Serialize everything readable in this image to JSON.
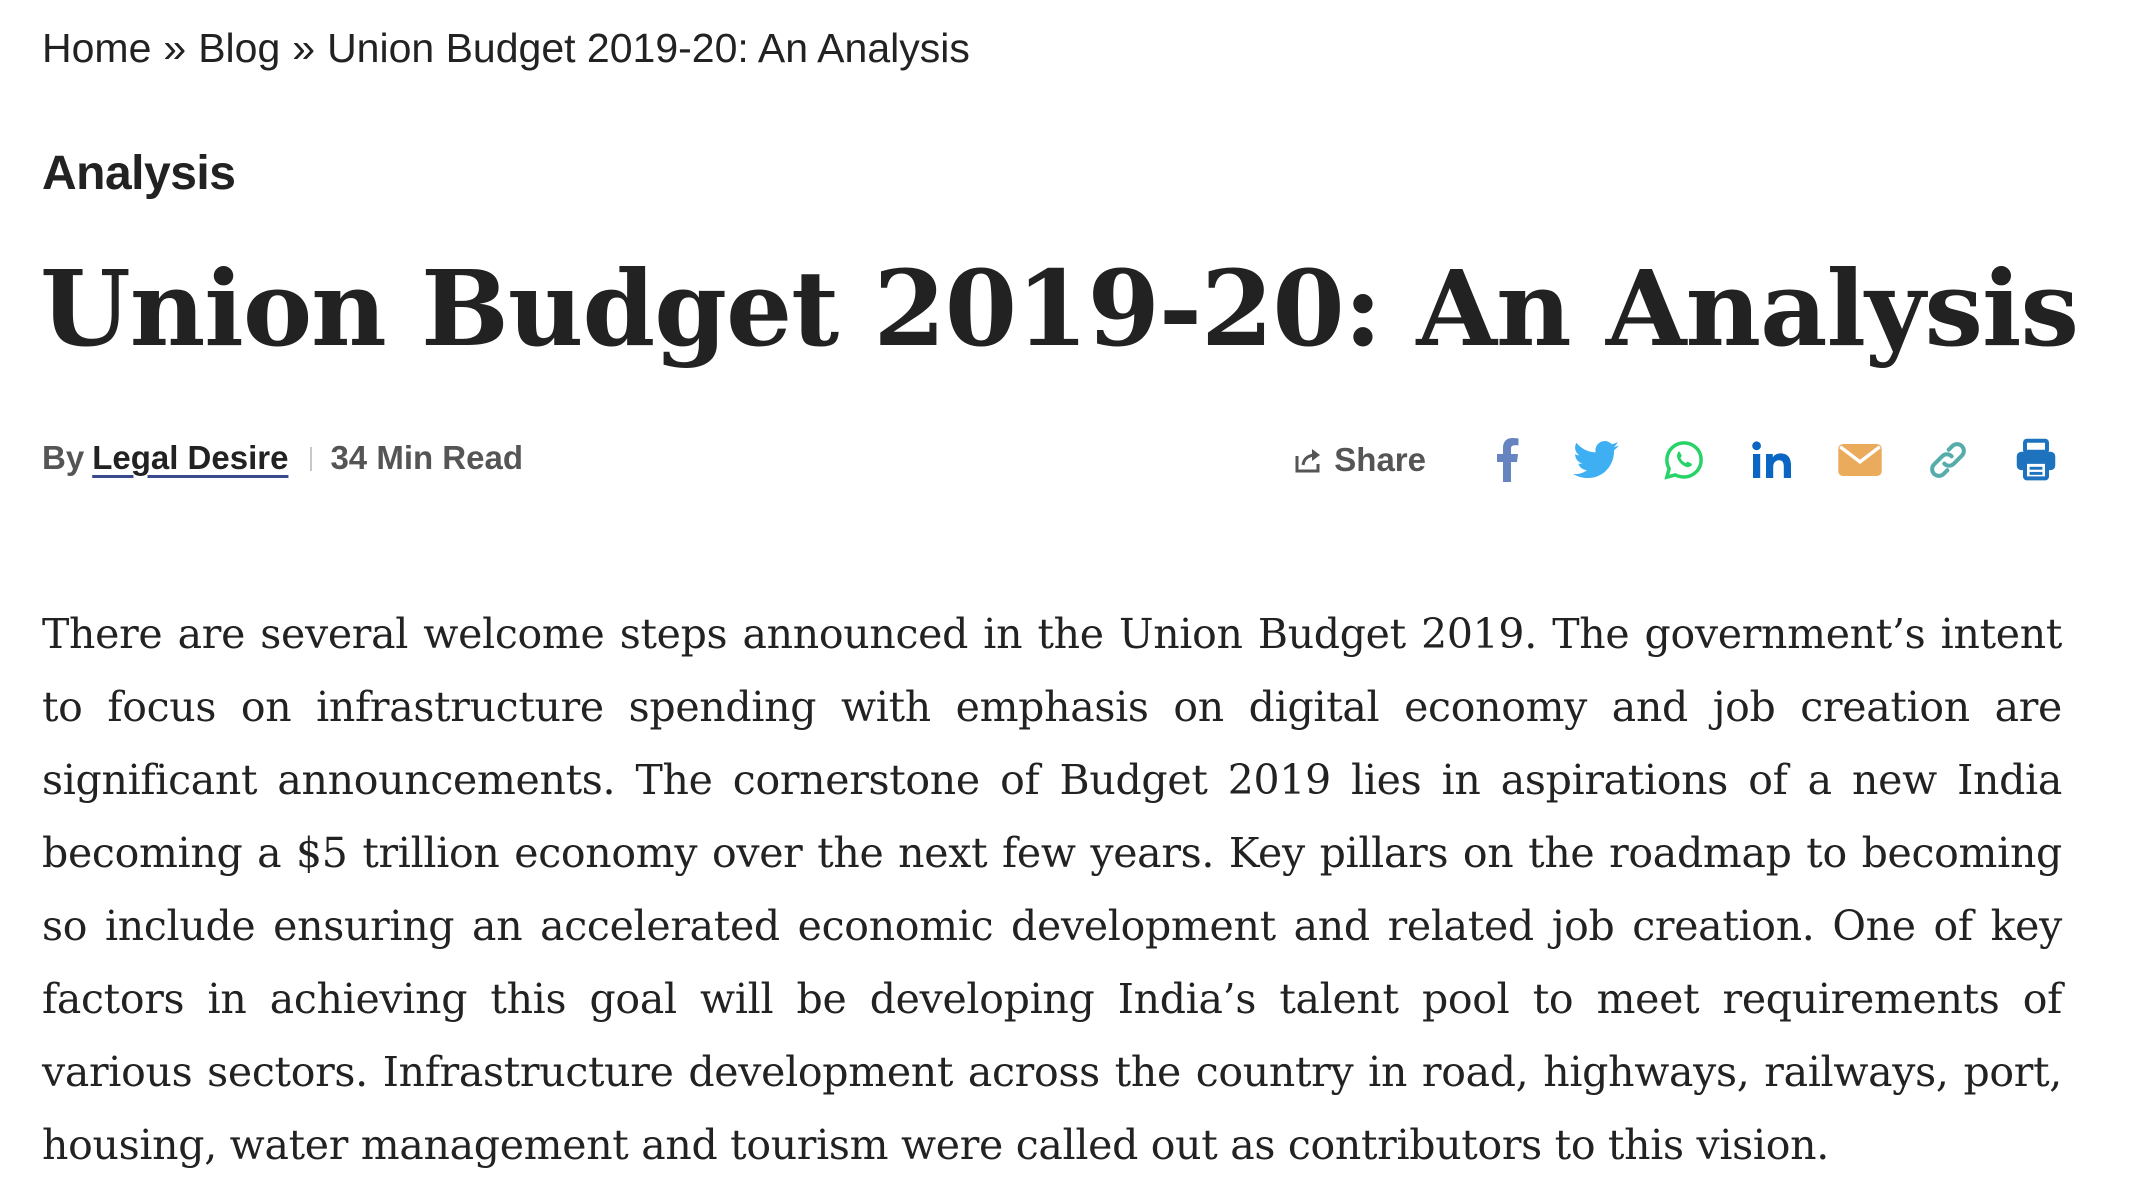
{
  "breadcrumb": {
    "home": "Home",
    "blog": "Blog",
    "current": "Union Budget 2019-20: An Analysis",
    "separator": "»"
  },
  "category": "Analysis",
  "title": "Union Budget 2019-20: An Analysis",
  "meta": {
    "by": "By",
    "author": "Legal Desire",
    "read_time": "34 Min Read"
  },
  "share": {
    "label": "Share",
    "icons": [
      "facebook-icon",
      "twitter-icon",
      "whatsapp-icon",
      "linkedin-icon",
      "email-icon",
      "link-icon",
      "print-icon"
    ],
    "colors": {
      "facebook": "#3b5998",
      "twitter": "#1da1f2",
      "whatsapp": "#25d366",
      "linkedin": "#0a66c2",
      "email": "#e8a24a",
      "link": "#55acaa",
      "print": "#1e73be"
    }
  },
  "article": {
    "paragraph": "There are several welcome steps announced in the Union Budget 2019. The government’s intent to focus on infrastructure spending with emphasis on digital economy and job creation are significant announcements. The cornerstone of Budget 2019 lies in aspirations of a new India becoming a $5 trillion economy over the next few years. Key pillars on the roadmap to becoming so include ensuring an accelerated economic development and related job creation. One of key factors in achieving this goal will be developing India’s talent pool to meet requirements of various sectors. Infrastructure development across the country in road, highways, railways, port, housing, water management and tourism were called out as contributors to this vision."
  }
}
